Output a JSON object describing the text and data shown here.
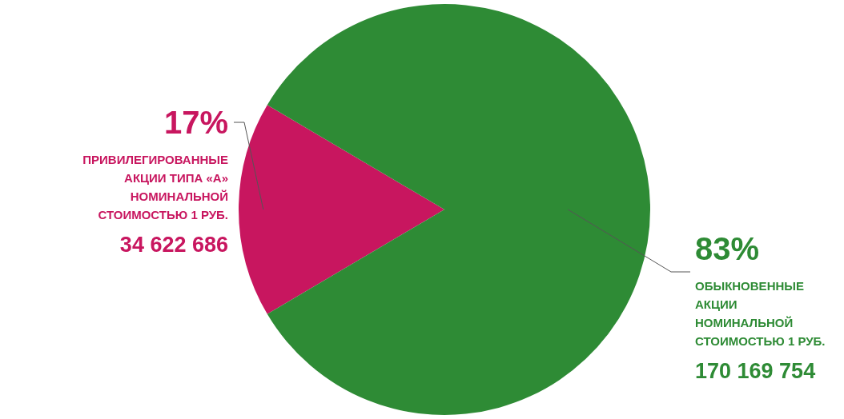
{
  "chart_data": {
    "type": "pie",
    "categories": [
      "ПРИВИЛЕГИРОВАННЫЕ АКЦИИ ТИПА «А» НОМИНАЛЬНОЙ СТОИМОСТЬЮ 1 РУБ.",
      "ОБЫКНОВЕННЫЕ АКЦИИ НОМИНАЛЬНОЙ СТОИМОСТЬЮ 1 РУБ."
    ],
    "values": [
      17,
      83
    ],
    "colors": [
      "#c8165f",
      "#2e8b35"
    ],
    "value_labels": [
      "17%",
      "83%"
    ],
    "annotations": [
      {
        "text": "34 622 686"
      },
      {
        "text": "170 169 754"
      }
    ],
    "legend": false
  }
}
